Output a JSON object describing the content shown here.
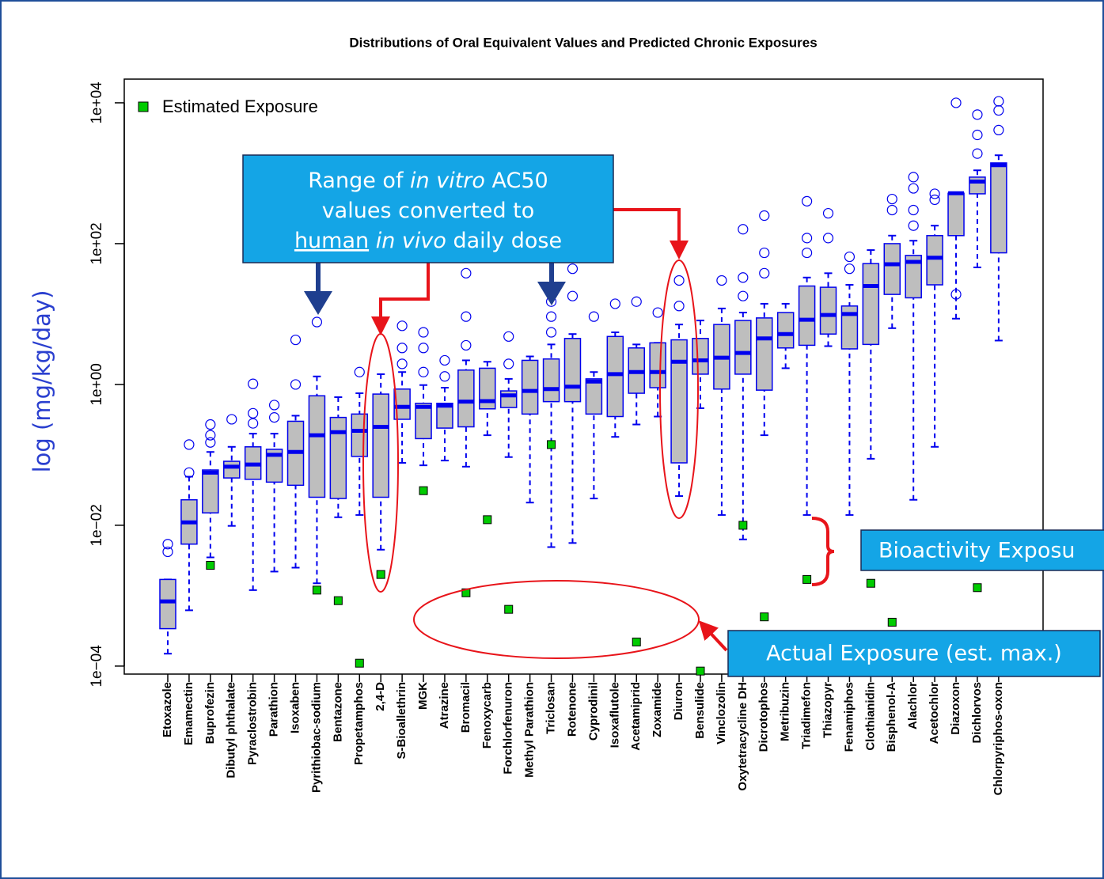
{
  "chart_data": {
    "type": "box",
    "title": "Distributions of Oral Equivalent Values and Predicted Chronic Exposures",
    "y_label": "log (mg/kg/day)",
    "log_y": true,
    "ylim": [
      7.7e-05,
      21700
    ],
    "yticks": [
      {
        "value": 0.0001,
        "label": "1e−04"
      },
      {
        "value": 0.01,
        "label": "1e−02"
      },
      {
        "value": 1,
        "label": "1e+00"
      },
      {
        "value": 100,
        "label": "1e+02"
      },
      {
        "value": 10000,
        "label": "1e+04"
      }
    ],
    "legend_position": "upper left",
    "box_color": "#bebebe",
    "line_color": "#0000ee",
    "categories": [
      "Etoxazole",
      "Emamectin",
      "Buprofezin",
      "Dibutyl phthalate",
      "Pyraclostrobin",
      "Parathion",
      "Isoxaben",
      "Pyrithiobac-sodium",
      "Bentazone",
      "Propetamphos",
      "2,4-D",
      "S-Bioallethrin",
      "MGK",
      "Atrazine",
      "Bromacil",
      "Fenoxycarb",
      "Forchlorfenuron",
      "Methyl Parathion",
      "Triclosan",
      "Rotenone",
      "Cyprodinil",
      "Isoxaflutole",
      "Acetamiprid",
      "Zoxamide",
      "Diuron",
      "Bensulide",
      "Vinclozolin",
      "Oxytetracycline DH",
      "Dicrotophos",
      "Metribuzin",
      "Triadimefon",
      "Thiazopyr",
      "Fenamiphos",
      "Clothianidin",
      "Bisphenol-A",
      "Alachlor",
      "Acetochlor",
      "Diazoxon",
      "Dichlorvos",
      "Chlorpyriphos-oxon"
    ],
    "boxes": [
      {
        "low": 0.00015,
        "q1": 0.00034,
        "median": 0.00083,
        "q3": 0.0017,
        "high": 0.0017,
        "outliers": [
          0.0054,
          0.0042
        ]
      },
      {
        "low": 0.00062,
        "q1": 0.0054,
        "median": 0.011,
        "q3": 0.023,
        "high": 0.049,
        "outliers": [
          0.056,
          0.14
        ]
      },
      {
        "low": 0.0035,
        "q1": 0.015,
        "median": 0.056,
        "q3": 0.061,
        "high": 0.11,
        "outliers": [
          0.15,
          0.19,
          0.27
        ]
      },
      {
        "low": 0.0098,
        "q1": 0.047,
        "median": 0.068,
        "q3": 0.081,
        "high": 0.13,
        "outliers": [
          0.32
        ]
      },
      {
        "low": 0.0012,
        "q1": 0.045,
        "median": 0.073,
        "q3": 0.13,
        "high": 0.2,
        "outliers": [
          0.28,
          0.39,
          1.02
        ]
      },
      {
        "low": 0.0022,
        "q1": 0.041,
        "median": 0.1,
        "q3": 0.12,
        "high": 0.2,
        "outliers": [
          0.34,
          0.51
        ]
      },
      {
        "low": 0.0025,
        "q1": 0.037,
        "median": 0.11,
        "q3": 0.3,
        "high": 0.36,
        "outliers": [
          1.0,
          4.3
        ]
      },
      {
        "low": 0.0015,
        "q1": 0.025,
        "median": 0.19,
        "q3": 0.69,
        "high": 1.3,
        "outliers": [
          7.7
        ]
      },
      {
        "low": 0.013,
        "q1": 0.024,
        "median": 0.21,
        "q3": 0.34,
        "high": 0.66,
        "outliers": []
      },
      {
        "low": 0.014,
        "q1": 0.095,
        "median": 0.22,
        "q3": 0.38,
        "high": 0.75,
        "outliers": [
          1.5
        ]
      },
      {
        "low": 0.0045,
        "q1": 0.025,
        "median": 0.25,
        "q3": 0.73,
        "high": 1.4,
        "outliers": []
      },
      {
        "low": 0.077,
        "q1": 0.32,
        "median": 0.48,
        "q3": 0.86,
        "high": 1.5,
        "outliers": [
          1.96,
          3.3,
          6.8
        ]
      },
      {
        "low": 0.071,
        "q1": 0.17,
        "median": 0.48,
        "q3": 0.54,
        "high": 0.98,
        "outliers": [
          1.5,
          3.3,
          5.5
        ]
      },
      {
        "low": 0.083,
        "q1": 0.24,
        "median": 0.5,
        "q3": 0.54,
        "high": 0.9,
        "outliers": [
          1.3,
          2.2
        ]
      },
      {
        "low": 0.068,
        "q1": 0.25,
        "median": 0.57,
        "q3": 1.6,
        "high": 2.2,
        "outliers": [
          3.6,
          9.2,
          38
        ]
      },
      {
        "low": 0.19,
        "q1": 0.45,
        "median": 0.58,
        "q3": 1.7,
        "high": 2.1,
        "outliers": []
      },
      {
        "low": 0.093,
        "q1": 0.47,
        "median": 0.7,
        "q3": 0.81,
        "high": 1.2,
        "outliers": [
          1.96,
          4.8
        ]
      },
      {
        "low": 0.021,
        "q1": 0.38,
        "median": 0.81,
        "q3": 2.2,
        "high": 2.5,
        "outliers": []
      },
      {
        "low": 0.0049,
        "q1": 0.57,
        "median": 0.86,
        "q3": 2.3,
        "high": 3.7,
        "outliers": [
          5.5,
          9.2,
          15
        ]
      },
      {
        "low": 0.0056,
        "q1": 0.57,
        "median": 0.93,
        "q3": 4.5,
        "high": 5.2,
        "outliers": [
          18,
          44
        ]
      },
      {
        "low": 0.024,
        "q1": 0.38,
        "median": 1.1,
        "q3": 1.2,
        "high": 1.5,
        "outliers": [
          9.2
        ]
      },
      {
        "low": 0.18,
        "q1": 0.35,
        "median": 1.4,
        "q3": 4.8,
        "high": 5.5,
        "outliers": [
          14
        ]
      },
      {
        "low": 0.27,
        "q1": 0.75,
        "median": 1.5,
        "q3": 3.3,
        "high": 3.7,
        "outliers": [
          15
        ]
      },
      {
        "low": 0.35,
        "q1": 0.9,
        "median": 1.5,
        "q3": 3.9,
        "high": 3.9,
        "outliers": [
          10.5
        ]
      },
      {
        "low": 0.026,
        "q1": 0.077,
        "median": 2.1,
        "q3": 4.3,
        "high": 7.1,
        "outliers": [
          13,
          30
        ]
      },
      {
        "low": 0.46,
        "q1": 1.4,
        "median": 2.2,
        "q3": 4.5,
        "high": 8.1,
        "outliers": []
      },
      {
        "low": 0.014,
        "q1": 0.86,
        "median": 2.4,
        "q3": 7.1,
        "high": 12,
        "outliers": [
          30
        ]
      },
      {
        "low": 0.0063,
        "q1": 1.4,
        "median": 2.8,
        "q3": 8.1,
        "high": 10.5,
        "outliers": [
          18,
          33,
          160
        ]
      },
      {
        "low": 0.19,
        "q1": 0.83,
        "median": 4.5,
        "q3": 8.8,
        "high": 14,
        "outliers": [
          38,
          74,
          250
        ]
      },
      {
        "low": 1.7,
        "q1": 3.3,
        "median": 5.2,
        "q3": 10.5,
        "high": 14,
        "outliers": []
      },
      {
        "low": 0.014,
        "q1": 3.6,
        "median": 8.3,
        "q3": 25,
        "high": 33,
        "outliers": [
          74,
          120,
          400
        ]
      },
      {
        "low": 3.5,
        "q1": 5.2,
        "median": 9.7,
        "q3": 24,
        "high": 38,
        "outliers": [
          120,
          270
        ]
      },
      {
        "low": 0.014,
        "q1": 3.2,
        "median": 10,
        "q3": 13,
        "high": 26,
        "outliers": [
          44,
          65
        ]
      },
      {
        "low": 0.088,
        "q1": 3.7,
        "median": 25,
        "q3": 52,
        "high": 81,
        "outliers": []
      },
      {
        "low": 6.3,
        "q1": 19,
        "median": 51,
        "q3": 100,
        "high": 130,
        "outliers": [
          300,
          430
        ]
      },
      {
        "low": 0.023,
        "q1": 17,
        "median": 55,
        "q3": 68,
        "high": 110,
        "outliers": [
          180,
          300,
          610,
          880
        ]
      },
      {
        "low": 0.13,
        "q1": 26,
        "median": 63,
        "q3": 130,
        "high": 180,
        "outliers": [
          420,
          510
        ]
      },
      {
        "low": 8.6,
        "q1": 130,
        "median": 520,
        "q3": 520,
        "high": 520,
        "outliers": [
          19,
          10000
        ]
      },
      {
        "low": 46,
        "q1": 510,
        "median": 760,
        "q3": 880,
        "high": 1100,
        "outliers": [
          1900,
          3500,
          6800
        ]
      },
      {
        "low": 4.2,
        "q1": 74,
        "median": 1300,
        "q3": 1400,
        "high": 1800,
        "outliers": [
          4100,
          7800,
          10500
        ]
      }
    ],
    "series": [
      {
        "name": "Estimated Exposure",
        "color": "#00cc00",
        "values": [
          null,
          null,
          0.0027,
          null,
          null,
          null,
          null,
          0.0012,
          0.00085,
          0.00011,
          0.002,
          null,
          0.031,
          null,
          0.0011,
          0.012,
          0.00064,
          null,
          0.14,
          null,
          null,
          null,
          0.00022,
          null,
          null,
          8.5e-05,
          null,
          0.01,
          0.0005,
          null,
          0.0017,
          null,
          null,
          0.0015,
          0.00042,
          null,
          null,
          null,
          0.0013,
          null
        ]
      }
    ],
    "annotations": {
      "ac50_callout": [
        [
          "Range of ",
          "in vitro",
          " AC50"
        ],
        [
          "values converted to"
        ],
        [
          "human",
          " in vivo",
          " daily dose"
        ]
      ],
      "ratio_callout": "Bioactivity Exposu",
      "actual_callout": "Actual Exposure (est. max.)"
    }
  }
}
